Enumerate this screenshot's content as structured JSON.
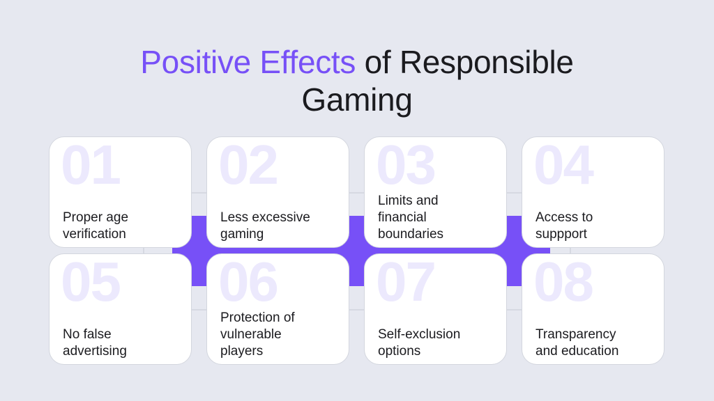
{
  "title": {
    "accent": "Positive Effects",
    "line1_rest": " of Responsible",
    "line2": "Gaming"
  },
  "colors": {
    "accent": "#7750f7",
    "background": "#e6e8f0",
    "number": "#ece9fd"
  },
  "cards": [
    {
      "number": "01",
      "lines": [
        "Proper age",
        "verification"
      ]
    },
    {
      "number": "02",
      "lines": [
        "Less excessive",
        "gaming"
      ]
    },
    {
      "number": "03",
      "lines": [
        "Limits and",
        "financial",
        "boundaries"
      ]
    },
    {
      "number": "04",
      "lines": [
        "Access to",
        "suppport"
      ]
    },
    {
      "number": "05",
      "lines": [
        "No false",
        "advertising"
      ]
    },
    {
      "number": "06",
      "lines": [
        "Protection of",
        "vulnerable",
        "players"
      ]
    },
    {
      "number": "07",
      "lines": [
        "Self-exclusion",
        "options"
      ]
    },
    {
      "number": "08",
      "lines": [
        "Transparency",
        "and education"
      ]
    }
  ]
}
